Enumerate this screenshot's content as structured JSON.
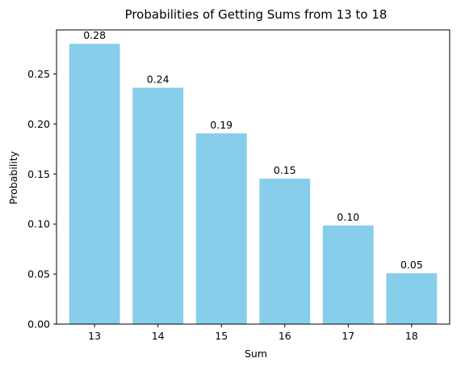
{
  "chart_data": {
    "type": "bar",
    "title": "Probabilities of Getting Sums from 13 to 18",
    "xlabel": "Sum",
    "ylabel": "Probability",
    "categories": [
      "13",
      "14",
      "15",
      "16",
      "17",
      "18"
    ],
    "values": [
      0.2801,
      0.2362,
      0.1906,
      0.1454,
      0.0985,
      0.0508
    ],
    "bar_labels": [
      "0.28",
      "0.24",
      "0.19",
      "0.15",
      "0.10",
      "0.05"
    ],
    "ylim": [
      0,
      0.294
    ],
    "yticks": [
      0.0,
      0.05,
      0.1,
      0.15,
      0.2,
      0.25
    ],
    "ytick_labels": [
      "0.00",
      "0.05",
      "0.10",
      "0.15",
      "0.20",
      "0.25"
    ],
    "grid": false,
    "colors": {
      "bar": "#87CEEB",
      "axis": "#000000",
      "text": "#000000"
    }
  }
}
